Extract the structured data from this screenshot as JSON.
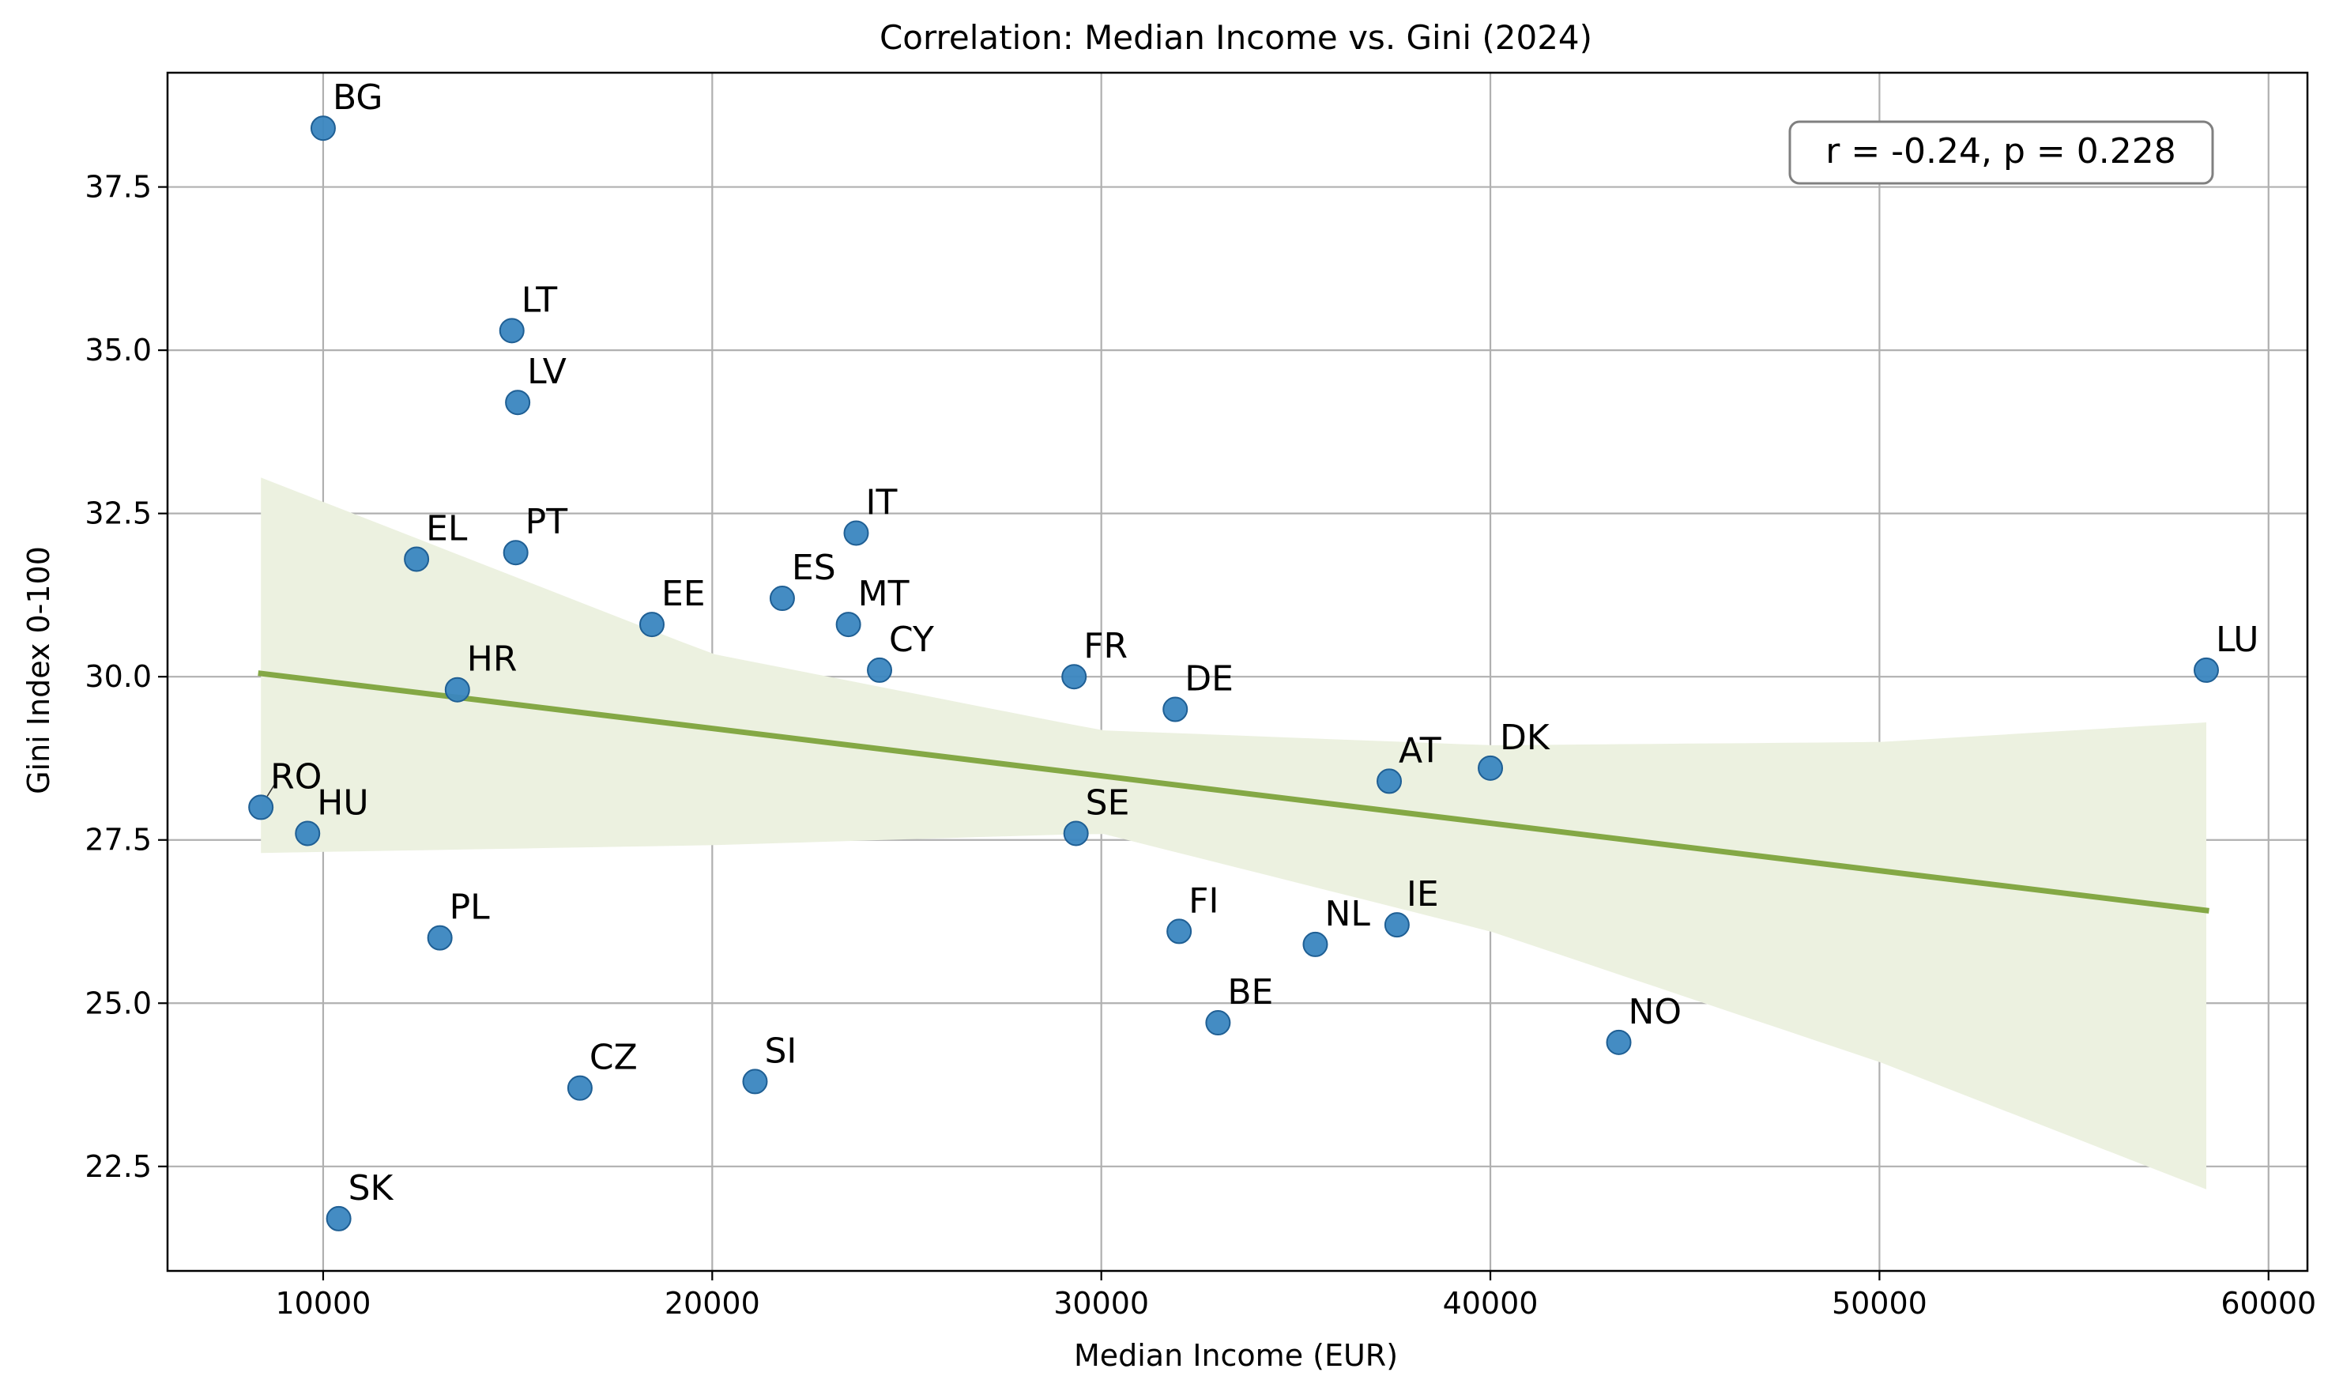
{
  "chart_data": {
    "type": "scatter",
    "title": "Correlation: Median Income vs. Gini (2024)",
    "xlabel": "Median Income (EUR)",
    "ylabel": "Gini Index 0-100",
    "xlim": [
      6000,
      61000
    ],
    "ylim": [
      20.9,
      39.25
    ],
    "xticks": [
      10000,
      20000,
      30000,
      40000,
      50000,
      60000
    ],
    "yticks": [
      22.5,
      25.0,
      27.5,
      30.0,
      32.5,
      35.0,
      37.5
    ],
    "xtick_labels": [
      "10000",
      "20000",
      "30000",
      "40000",
      "50000",
      "60000"
    ],
    "ytick_labels": [
      "22.5",
      "25.0",
      "27.5",
      "30.0",
      "32.5",
      "35.0",
      "37.5"
    ],
    "grid": true,
    "annotation": "r = -0.24, p = 0.228",
    "annotation_position": "top-right",
    "colors": {
      "points": "#3a86c0",
      "point_edge": "#1f5f94",
      "trend_line": "#84a845",
      "confidence_band": "#ecf1e0",
      "grid": "#b0b0b0",
      "axes": "#000000"
    },
    "points": [
      {
        "label": "BG",
        "x": 10000,
        "y": 38.4
      },
      {
        "label": "LT",
        "x": 14850,
        "y": 35.3
      },
      {
        "label": "LV",
        "x": 15000,
        "y": 34.2
      },
      {
        "label": "IT",
        "x": 23700,
        "y": 32.2
      },
      {
        "label": "PT",
        "x": 14950,
        "y": 31.9
      },
      {
        "label": "EL",
        "x": 12400,
        "y": 31.8
      },
      {
        "label": "ES",
        "x": 21800,
        "y": 31.2
      },
      {
        "label": "MT",
        "x": 23500,
        "y": 30.8
      },
      {
        "label": "EE",
        "x": 18450,
        "y": 30.8
      },
      {
        "label": "CY",
        "x": 24300,
        "y": 30.1
      },
      {
        "label": "FR",
        "x": 29300,
        "y": 30.0
      },
      {
        "label": "HR",
        "x": 13450,
        "y": 29.8
      },
      {
        "label": "DE",
        "x": 31900,
        "y": 29.5
      },
      {
        "label": "LU",
        "x": 58400,
        "y": 30.1
      },
      {
        "label": "DK",
        "x": 40000,
        "y": 28.6
      },
      {
        "label": "AT",
        "x": 37400,
        "y": 28.4
      },
      {
        "label": "RO",
        "x": 8400,
        "y": 28.0
      },
      {
        "label": "HU",
        "x": 9600,
        "y": 27.6
      },
      {
        "label": "SE",
        "x": 29350,
        "y": 27.6
      },
      {
        "label": "IE",
        "x": 37600,
        "y": 26.2
      },
      {
        "label": "FI",
        "x": 32000,
        "y": 26.1
      },
      {
        "label": "PL",
        "x": 13000,
        "y": 26.0
      },
      {
        "label": "NL",
        "x": 35500,
        "y": 25.9
      },
      {
        "label": "BE",
        "x": 33000,
        "y": 24.7
      },
      {
        "label": "NO",
        "x": 43300,
        "y": 24.4
      },
      {
        "label": "SI",
        "x": 21100,
        "y": 23.8
      },
      {
        "label": "CZ",
        "x": 16600,
        "y": 23.7
      },
      {
        "label": "SK",
        "x": 10400,
        "y": 21.7
      }
    ],
    "trend_line": {
      "x": [
        8400,
        58400
      ],
      "y": [
        30.05,
        26.42
      ]
    },
    "confidence_band": {
      "x": [
        8400,
        20000,
        30000,
        40000,
        50000,
        58400
      ],
      "lower": [
        27.3,
        27.42,
        27.6,
        26.1,
        24.1,
        22.15
      ],
      "upper": [
        33.05,
        30.35,
        29.18,
        28.95,
        29.0,
        29.3
      ]
    }
  }
}
